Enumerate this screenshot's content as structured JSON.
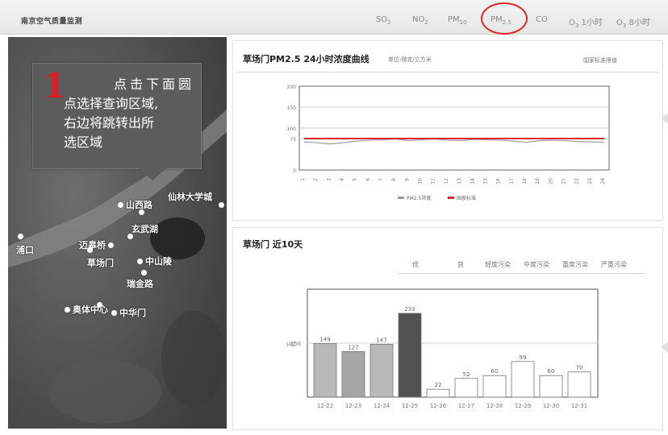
{
  "app_title": "南京空气质量监测",
  "nav": [
    {
      "id": "so2",
      "main": "SO",
      "sub": "2"
    },
    {
      "id": "no2",
      "main": "NO",
      "sub": "2"
    },
    {
      "id": "pm10",
      "main": "PM",
      "sub": "10"
    },
    {
      "id": "pm25",
      "main": "PM",
      "sub": "2.5"
    },
    {
      "id": "co",
      "main": "CO",
      "sub": ""
    },
    {
      "id": "o3",
      "main": "O",
      "sub": "3",
      "extra": " 1小时"
    },
    {
      "id": "o38",
      "main": "O",
      "sub": "3",
      "extra": " 8小时"
    }
  ],
  "tooltip": {
    "number": "1",
    "lines": [
      "点击下面圆",
      "点选择查询区域,",
      "右边将跳转出所",
      "选区域"
    ]
  },
  "stations": [
    "山西路",
    "仙林大学城",
    "玄武湖",
    "迈皋桥",
    "浦口",
    "瑞金路",
    "草场门",
    "中山陵",
    "奥体中心",
    "中华门",
    "山西路",
    "仙林大学城",
    "玄武湖",
    "迈皋桥",
    "浦口",
    "瑞金路",
    "草场门",
    "中山陵",
    "奥体中心",
    "中华门"
  ],
  "map_labels": [
    {
      "name": "山西路"
    },
    {
      "name": "仙林大学城"
    },
    {
      "name": "玄武湖"
    },
    {
      "name": "迈皋桥"
    },
    {
      "name": "浦口"
    },
    {
      "name": "瑞金路"
    },
    {
      "name": "中山陵"
    },
    {
      "name": "奥体中心"
    },
    {
      "name": "中华门"
    },
    {
      "name": "草场门"
    }
  ],
  "chart1": {
    "title": "草场门PM2.5 24小时浓度曲线",
    "unit": "单位:微克/立方米",
    "link": "国家标准限值",
    "legend": [
      "PM2.5浓度",
      "国家标准"
    ],
    "chart_data": {
      "type": "line",
      "x": [
        "1",
        "2",
        "3",
        "4",
        "5",
        "6",
        "7",
        "8",
        "9",
        "10",
        "11",
        "12",
        "13",
        "14",
        "15",
        "16",
        "17",
        "18",
        "19",
        "20",
        "21",
        "22",
        "23",
        "24"
      ],
      "y_ticks": [
        "200",
        "150",
        "100",
        "75",
        "0"
      ],
      "series": [
        {
          "values": [
            67,
            65,
            62,
            65,
            69,
            71,
            72,
            74,
            70,
            72,
            74,
            71,
            70,
            73,
            72,
            71,
            69,
            66,
            70,
            71,
            70,
            68,
            67,
            66
          ]
        },
        {
          "values": [
            75,
            75,
            75,
            75,
            75,
            75,
            75,
            75,
            75,
            75,
            75,
            75,
            75,
            75,
            75,
            75,
            75,
            75,
            75,
            75,
            75,
            75,
            75,
            75
          ]
        }
      ],
      "ylim": [
        0,
        200
      ],
      "colors": [
        "#9a9a9a",
        "#e0242a"
      ]
    }
  },
  "chart2": {
    "title": "草场门 近10天",
    "filters": [
      "优",
      "良",
      "轻度污染",
      "中度污染",
      "重度污染",
      "严重污染"
    ],
    "ylabel": "μg",
    "chart_data": {
      "type": "bar",
      "categories": [
        "12-22",
        "12-23",
        "12-24",
        "12-25",
        "12-26",
        "12-27",
        "12-28",
        "12-29",
        "12-30",
        "12-31"
      ],
      "values": [
        149,
        127,
        147,
        233,
        22,
        52,
        60,
        99,
        60,
        70
      ],
      "ytick": "150",
      "ylim": [
        0,
        300
      ],
      "colors": [
        "#b9b9b9",
        "#a7a7a7",
        "#b9b9b9",
        "#515151",
        "#ffffff",
        "#ffffff",
        "#ffffff",
        "#ffffff",
        "#ffffff",
        "#ffffff"
      ]
    }
  }
}
